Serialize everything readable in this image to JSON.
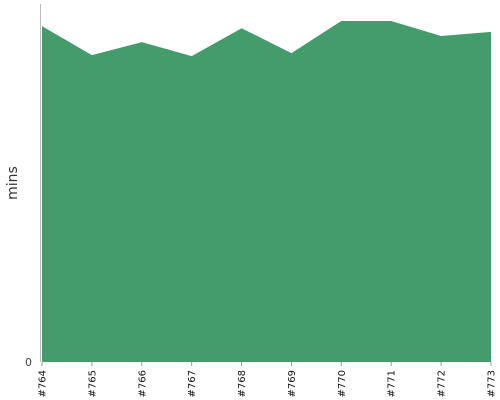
{
  "chart_data": {
    "type": "area",
    "categories": [
      "#764",
      "#765",
      "#766",
      "#767",
      "#768",
      "#769",
      "#770",
      "#771",
      "#772",
      "#773"
    ],
    "series": [
      {
        "values": [
          98.5,
          90.0,
          93.8,
          89.7,
          97.9,
          90.6,
          100.0,
          100.0,
          95.6,
          96.8
        ]
      }
    ],
    "ylabel": "mins",
    "y_tick_labels": [
      "0"
    ],
    "ylim": [
      0,
      100
    ],
    "fill_color": "#449c6d",
    "grid": false
  }
}
